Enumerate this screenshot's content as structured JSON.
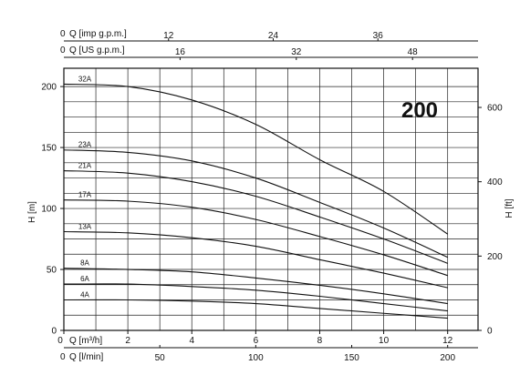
{
  "badge": "200",
  "chart_data": {
    "type": "line",
    "title": "",
    "xlabel": "Q [m³/h]",
    "ylabel": "H [m]",
    "ylabel_right": "H [ft]",
    "xlim": [
      0,
      12.95
    ],
    "ylim": [
      0,
      215
    ],
    "grid": true,
    "x_ticks": [
      0,
      2,
      4,
      6,
      8,
      10,
      12
    ],
    "y_ticks": [
      0,
      50,
      100,
      150,
      200
    ],
    "right_axis": {
      "label": "H [ft]",
      "ticks": [
        0,
        200,
        400,
        600
      ]
    },
    "top_axes": [
      {
        "label": "Q [imp g.p.m.]",
        "zero": "0",
        "ticks": [
          12,
          24,
          36
        ]
      },
      {
        "label": "Q [US g.p.m.]",
        "zero": "0",
        "ticks": [
          16,
          32,
          48
        ]
      }
    ],
    "bottom_extra_axis": {
      "label": "Q [l/min]",
      "zero": "0",
      "ticks": [
        50,
        100,
        150,
        200
      ]
    },
    "series": [
      {
        "name": "32A",
        "x": [
          0,
          2,
          4,
          6,
          8,
          10,
          12
        ],
        "y": [
          202,
          200,
          189,
          169,
          140,
          114,
          79
        ]
      },
      {
        "name": "23A",
        "x": [
          0,
          2,
          4,
          6,
          8,
          10,
          12
        ],
        "y": [
          148,
          146,
          139,
          125,
          105,
          84,
          60
        ]
      },
      {
        "name": "21A",
        "x": [
          0,
          2,
          4,
          6,
          8,
          10,
          12
        ],
        "y": [
          131,
          129,
          122,
          110,
          93,
          75,
          55
        ]
      },
      {
        "name": "17A",
        "x": [
          0,
          2,
          4,
          6,
          8,
          10,
          12
        ],
        "y": [
          107,
          106,
          101,
          91,
          77,
          62,
          45
        ]
      },
      {
        "name": "13A",
        "x": [
          0,
          2,
          4,
          6,
          8,
          10,
          12
        ],
        "y": [
          81,
          80,
          76,
          69,
          58,
          47,
          35
        ]
      },
      {
        "name": "8A",
        "x": [
          0,
          2,
          4,
          6,
          8,
          10,
          12
        ],
        "y": [
          51,
          50,
          48,
          43,
          37,
          30,
          22
        ]
      },
      {
        "name": "6A",
        "x": [
          0,
          2,
          4,
          6,
          8,
          10,
          12
        ],
        "y": [
          38,
          38,
          36,
          33,
          28,
          22,
          16
        ]
      },
      {
        "name": "4A",
        "x": [
          0,
          2,
          4,
          6,
          8,
          10,
          12
        ],
        "y": [
          25,
          25,
          24,
          22,
          18,
          14,
          10
        ]
      }
    ]
  }
}
